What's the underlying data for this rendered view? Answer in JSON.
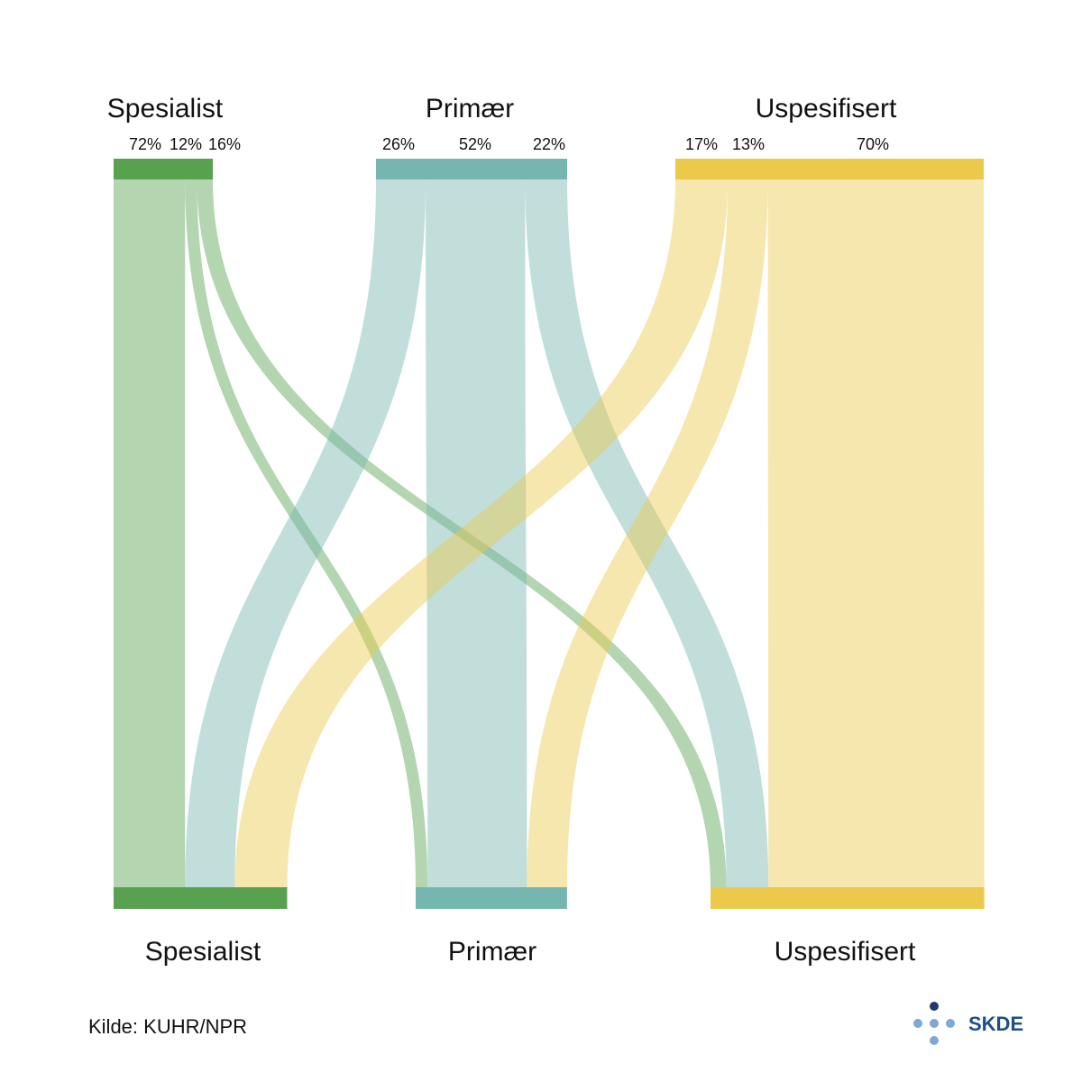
{
  "chart_data": {
    "type": "sankey",
    "source_nodes": [
      "Spesialist",
      "Primær",
      "Uspesifisert"
    ],
    "target_nodes": [
      "Spesialist",
      "Primær",
      "Uspesifisert"
    ],
    "flows": [
      {
        "from": "Spesialist",
        "to": "Spesialist",
        "percent": 72,
        "label": "72%"
      },
      {
        "from": "Spesialist",
        "to": "Primær",
        "percent": 12,
        "label": "12%"
      },
      {
        "from": "Spesialist",
        "to": "Uspesifisert",
        "percent": 16,
        "label": "16%"
      },
      {
        "from": "Primær",
        "to": "Spesialist",
        "percent": 26,
        "label": "26%"
      },
      {
        "from": "Primær",
        "to": "Primær",
        "percent": 52,
        "label": "52%"
      },
      {
        "from": "Primær",
        "to": "Uspesifisert",
        "percent": 22,
        "label": "22%"
      },
      {
        "from": "Uspesifisert",
        "to": "Spesialist",
        "percent": 17,
        "label": "17%"
      },
      {
        "from": "Uspesifisert",
        "to": "Primær",
        "percent": 13,
        "label": "13%"
      },
      {
        "from": "Uspesifisert",
        "to": "Uspesifisert",
        "percent": 70,
        "label": "70%"
      }
    ],
    "colors": {
      "Spesialist": "#57a14f",
      "Primær": "#76b6b0",
      "Uspesifisert": "#ecc94b"
    }
  },
  "footer": {
    "source": "Kilde: KUHR/NPR",
    "logo_text": "SKDE"
  }
}
